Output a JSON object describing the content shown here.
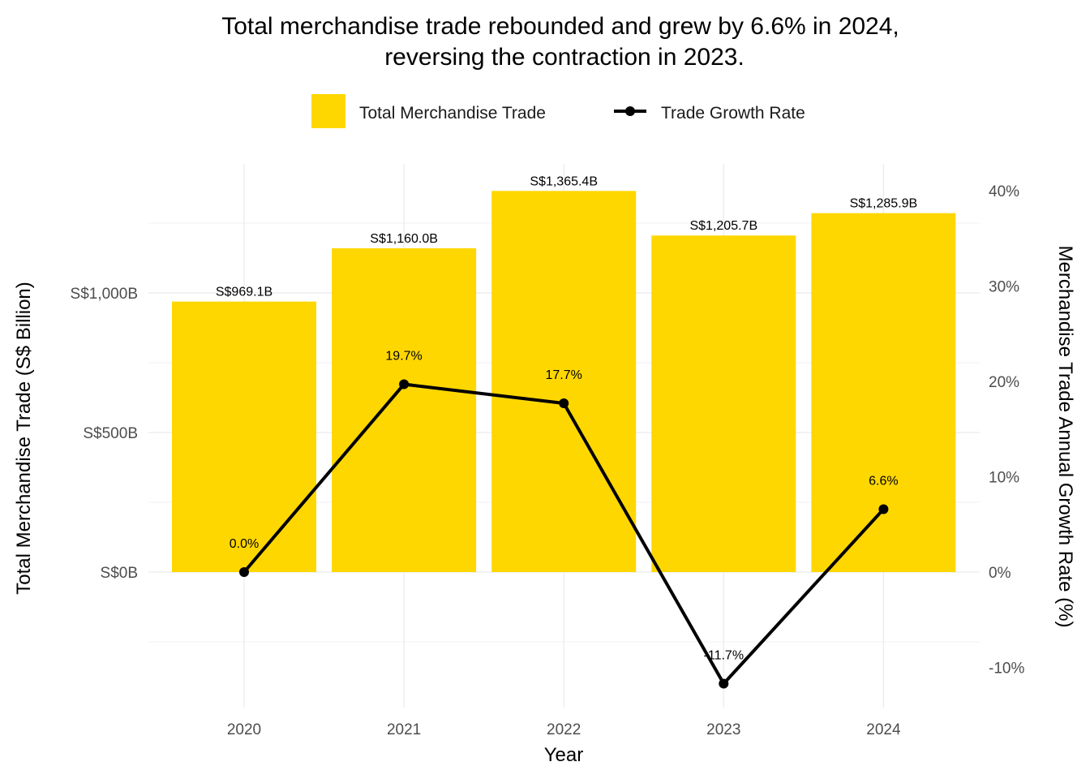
{
  "chart_data": {
    "type": "bar",
    "title_lines": [
      "Total merchandise trade rebounded and grew by 6.6% in 2024,",
      "reversing the contraction in 2023."
    ],
    "xlabel": "Year",
    "ylabel": "Total Merchandise Trade (S$ Billion)",
    "y2label": "Merchandise Trade Annual Growth Rate (%)",
    "categories": [
      "2020",
      "2021",
      "2022",
      "2023",
      "2024"
    ],
    "series": [
      {
        "name": "Total Merchandise Trade",
        "type": "bar",
        "axis": "left",
        "color": "#FFD700",
        "values": [
          969.1,
          1160.0,
          1365.4,
          1205.7,
          1285.9
        ],
        "labels": [
          "S$969.1B",
          "S$1,160.0B",
          "S$1,365.4B",
          "S$1,205.7B",
          "S$1,285.9B"
        ]
      },
      {
        "name": "Trade Growth Rate",
        "type": "line",
        "axis": "right",
        "color": "#000000",
        "values": [
          0.0,
          19.7,
          17.7,
          -11.7,
          6.6
        ],
        "labels": [
          "0.0%",
          "19.7%",
          "17.7%",
          "-11.7%",
          "6.6%"
        ]
      }
    ],
    "y_ticks": [
      {
        "value": 0,
        "label": "S$0B"
      },
      {
        "value": 500,
        "label": "S$500B"
      },
      {
        "value": 1000,
        "label": "S$1,000B"
      }
    ],
    "y2_ticks": [
      {
        "value": -10,
        "label": "-10%"
      },
      {
        "value": 0,
        "label": "0%"
      },
      {
        "value": 10,
        "label": "10%"
      },
      {
        "value": 20,
        "label": "20%"
      },
      {
        "value": 30,
        "label": "30%"
      },
      {
        "value": 40,
        "label": "40%"
      }
    ],
    "legend_position": "top",
    "grid": true
  }
}
